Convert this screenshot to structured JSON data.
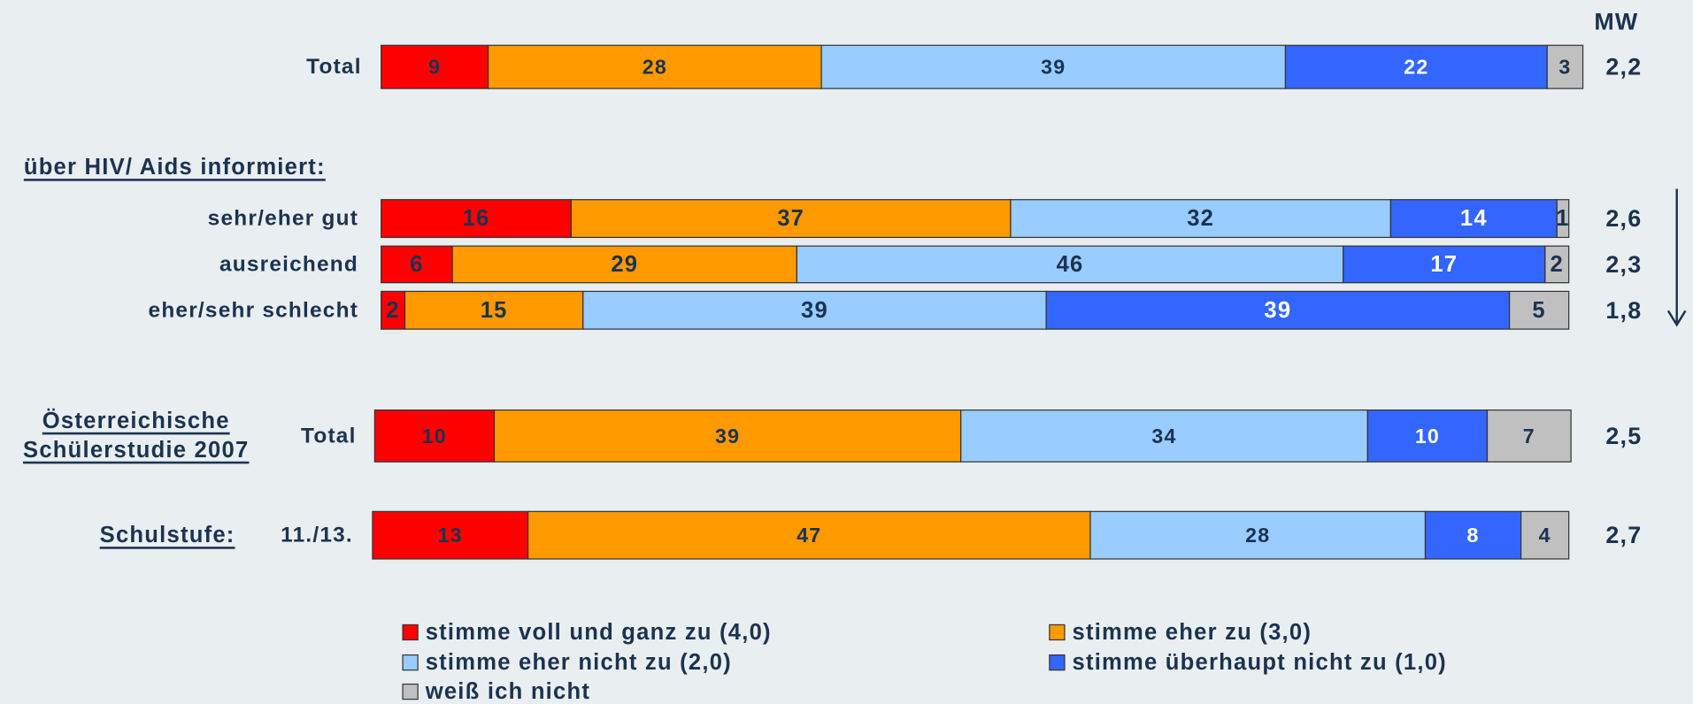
{
  "chart_data": {
    "type": "bar",
    "orientation": "horizontal",
    "stacked": true,
    "xlim": [
      0,
      100
    ],
    "mean_header": "MW",
    "group_labels": {
      "informed": "über HIV/ Aids informiert:",
      "study": [
        "Österreichische",
        "Schülerstudie 2007"
      ],
      "grade": "Schulstufe:"
    },
    "categories": [
      "Total",
      "sehr/eher gut",
      "ausreichend",
      "eher/sehr schlecht",
      "Total",
      "11./13."
    ],
    "mean_labels": [
      "2,2",
      "2,6",
      "2,3",
      "1,8",
      "2,5",
      "2,7"
    ],
    "series": [
      {
        "name": "stimme voll und ganz zu (4,0)",
        "color": "#ff0000",
        "text_color": "#1b3350",
        "values": [
          9,
          16,
          6,
          2,
          10,
          13
        ]
      },
      {
        "name": "stimme eher zu (3,0)",
        "color": "#ff9900",
        "text_color": "#1b3350",
        "values": [
          28,
          37,
          29,
          15,
          39,
          47
        ]
      },
      {
        "name": "stimme eher nicht zu (2,0)",
        "color": "#99ccff",
        "text_color": "#1b3350",
        "values": [
          39,
          32,
          46,
          39,
          34,
          28
        ]
      },
      {
        "name": "stimme überhaupt nicht zu (1,0)",
        "color": "#3366ff",
        "text_color": "#ffffff",
        "values": [
          22,
          14,
          17,
          39,
          10,
          8
        ]
      },
      {
        "name": "weiß ich nicht",
        "color": "#c0c0c0",
        "text_color": "#1b3350",
        "values": [
          3,
          1,
          2,
          5,
          7,
          4
        ]
      }
    ]
  }
}
